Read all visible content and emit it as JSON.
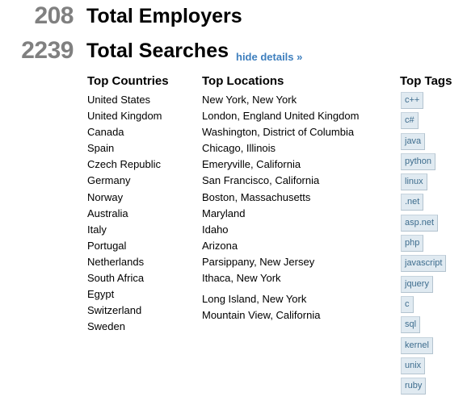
{
  "stats": {
    "employers": {
      "count": "208",
      "label": "Total Employers"
    },
    "searches": {
      "count": "2239",
      "label": "Total Searches",
      "toggle_link": "hide details »"
    }
  },
  "countries": {
    "title": "Top Countries",
    "items": [
      "United States",
      "United Kingdom",
      "Canada",
      "Spain",
      "Czech Republic",
      "Germany",
      "Norway",
      "Australia",
      "Italy",
      "Portugal",
      "Netherlands",
      "South Africa",
      "Egypt",
      "Switzerland",
      "Sweden"
    ]
  },
  "locations": {
    "title": "Top Locations",
    "items": [
      "New York, New York",
      "London, England United Kingdom",
      "Washington, District of Columbia",
      "Chicago, Illinois",
      "Emeryville, California",
      "San Francisco, California",
      "Boston, Massachusetts",
      "Maryland",
      "Idaho",
      "Arizona",
      "Parsippany, New Jersey",
      "Ithaca, New York",
      "Long Island, New York",
      "Mountain View, California"
    ]
  },
  "tags": {
    "title": "Top Tags",
    "items": [
      "c++",
      "c#",
      "java",
      "python",
      "linux",
      ".net",
      "asp.net",
      "php",
      "javascript",
      "jquery",
      "c",
      "sql",
      "kernel",
      "unix",
      "ruby"
    ]
  },
  "colors": {
    "stat_number": "#808080",
    "link": "#3e7fbe",
    "tag_bg": "#e0eaf1",
    "tag_text": "#3e6d8e"
  }
}
